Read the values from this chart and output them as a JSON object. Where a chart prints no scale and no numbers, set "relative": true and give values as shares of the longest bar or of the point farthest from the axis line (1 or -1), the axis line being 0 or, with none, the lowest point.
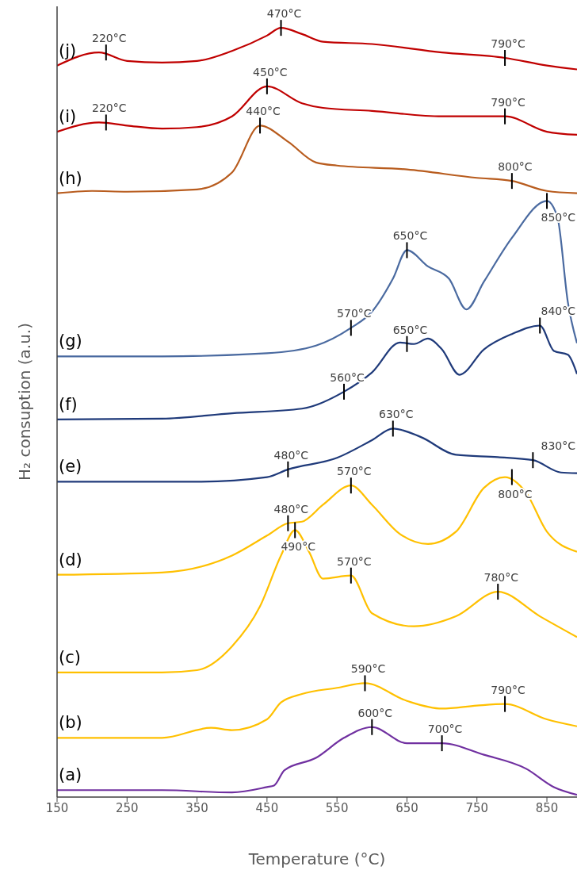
{
  "chart_data": {
    "type": "line",
    "relative": true,
    "xlabel": "Temperature (°C)",
    "ylabel": "H₂ consuption (a.u.)",
    "xlim": [
      150,
      893
    ],
    "xticks": [
      150,
      250,
      350,
      450,
      550,
      650,
      750,
      850
    ],
    "grid": false,
    "legend": false,
    "marker": "none",
    "line_style": "solid",
    "series": [
      {
        "name": "(j)",
        "color": "#c00000",
        "x": [
          150,
          210,
          250,
          300,
          350,
          400,
          450,
          470,
          500,
          530,
          600,
          700,
          790,
          850,
          893
        ],
        "values": [
          0.951,
          0.968,
          0.957,
          0.955,
          0.957,
          0.97,
          0.99,
          1.0,
          0.992,
          0.982,
          0.979,
          0.968,
          0.961,
          0.951,
          0.946
        ]
      },
      {
        "name": "(i)",
        "color": "#c00000",
        "x": [
          150,
          210,
          250,
          300,
          350,
          400,
          450,
          500,
          530,
          600,
          700,
          790,
          850,
          893
        ],
        "values": [
          0.865,
          0.877,
          0.873,
          0.869,
          0.871,
          0.885,
          0.924,
          0.902,
          0.896,
          0.892,
          0.885,
          0.885,
          0.865,
          0.861
        ]
      },
      {
        "name": "(h)",
        "color": "#b85c1e",
        "x": [
          150,
          200,
          250,
          350,
          400,
          440,
          480,
          520,
          550,
          650,
          750,
          800,
          850,
          893
        ],
        "values": [
          0.785,
          0.788,
          0.787,
          0.79,
          0.812,
          0.873,
          0.852,
          0.825,
          0.821,
          0.816,
          0.805,
          0.801,
          0.788,
          0.785
        ]
      },
      {
        "name": "(g)",
        "color": "#4a6aa0",
        "x": [
          150,
          300,
          450,
          520,
          570,
          600,
          630,
          650,
          680,
          710,
          735,
          760,
          800,
          850,
          865,
          880,
          893
        ],
        "values": [
          0.573,
          0.573,
          0.577,
          0.587,
          0.61,
          0.631,
          0.674,
          0.711,
          0.69,
          0.674,
          0.634,
          0.67,
          0.727,
          0.775,
          0.754,
          0.643,
          0.59
        ]
      },
      {
        "name": "(f)",
        "color": "#1f3a7a",
        "x": [
          150,
          300,
          400,
          500,
          560,
          600,
          640,
          660,
          680,
          700,
          725,
          760,
          800,
          840,
          860,
          880,
          893
        ],
        "values": [
          0.491,
          0.492,
          0.499,
          0.505,
          0.527,
          0.552,
          0.591,
          0.589,
          0.596,
          0.582,
          0.549,
          0.582,
          0.602,
          0.613,
          0.58,
          0.575,
          0.55
        ]
      },
      {
        "name": "(e)",
        "color": "#1f3a7a",
        "x": [
          150,
          350,
          450,
          480,
          550,
          600,
          630,
          670,
          720,
          780,
          830,
          870,
          893
        ],
        "values": [
          0.41,
          0.41,
          0.416,
          0.426,
          0.441,
          0.464,
          0.479,
          0.468,
          0.445,
          0.442,
          0.438,
          0.422,
          0.421
        ]
      },
      {
        "name": "(d)",
        "color": "#ffc000",
        "x": [
          150,
          300,
          400,
          450,
          480,
          500,
          530,
          570,
          600,
          640,
          680,
          720,
          760,
          790,
          820,
          850,
          893
        ],
        "values": [
          0.289,
          0.292,
          0.314,
          0.34,
          0.356,
          0.358,
          0.38,
          0.405,
          0.38,
          0.342,
          0.329,
          0.345,
          0.402,
          0.416,
          0.396,
          0.345,
          0.319
        ]
      },
      {
        "name": "(c)",
        "color": "#ffc000",
        "x": [
          150,
          300,
          350,
          400,
          440,
          470,
          490,
          510,
          530,
          570,
          600,
          660,
          720,
          780,
          840,
          893
        ],
        "values": [
          0.162,
          0.162,
          0.165,
          0.196,
          0.248,
          0.314,
          0.347,
          0.319,
          0.284,
          0.288,
          0.239,
          0.222,
          0.235,
          0.267,
          0.235,
          0.208
        ]
      },
      {
        "name": "(b)",
        "color": "#ffc000",
        "x": [
          150,
          300,
          370,
          400,
          450,
          470,
          500,
          550,
          590,
          650,
          700,
          750,
          790,
          850,
          893
        ],
        "values": [
          0.077,
          0.077,
          0.09,
          0.087,
          0.101,
          0.123,
          0.134,
          0.142,
          0.148,
          0.125,
          0.115,
          0.119,
          0.121,
          0.101,
          0.092
        ]
      },
      {
        "name": "(a)",
        "color": "#7030a0",
        "x": [
          150,
          300,
          400,
          450,
          460,
          475,
          520,
          560,
          600,
          650,
          700,
          760,
          820,
          860,
          893
        ],
        "values": [
          0.009,
          0.009,
          0.006,
          0.013,
          0.015,
          0.035,
          0.051,
          0.077,
          0.091,
          0.07,
          0.07,
          0.055,
          0.037,
          0.013,
          0.003
        ]
      }
    ],
    "annotations": [
      {
        "text": "220°C",
        "x": 220,
        "y": 0.968
      },
      {
        "text": "470°C",
        "x": 470,
        "y": 1.0
      },
      {
        "text": "790°C",
        "x": 790,
        "y": 0.961
      },
      {
        "text": "220°C",
        "x": 220,
        "y": 0.877
      },
      {
        "text": "450°C",
        "x": 450,
        "y": 0.924
      },
      {
        "text": "790°C",
        "x": 790,
        "y": 0.885
      },
      {
        "text": "440°C",
        "x": 440,
        "y": 0.873
      },
      {
        "text": "800°C",
        "x": 800,
        "y": 0.801
      },
      {
        "text": "570°C",
        "x": 570,
        "y": 0.61
      },
      {
        "text": "650°C",
        "x": 650,
        "y": 0.711
      },
      {
        "text": "850°C",
        "x": 850,
        "y": 0.775
      },
      {
        "text": "560°C",
        "x": 560,
        "y": 0.527
      },
      {
        "text": "650°C",
        "x": 650,
        "y": 0.589
      },
      {
        "text": "840°C",
        "x": 840,
        "y": 0.613
      },
      {
        "text": "480°C",
        "x": 480,
        "y": 0.426
      },
      {
        "text": "630°C",
        "x": 630,
        "y": 0.479
      },
      {
        "text": "830°C",
        "x": 830,
        "y": 0.438
      },
      {
        "text": "480°C",
        "x": 480,
        "y": 0.356
      },
      {
        "text": "570°C",
        "x": 570,
        "y": 0.405
      },
      {
        "text": "800°C",
        "x": 800,
        "y": 0.416
      },
      {
        "text": "490°C",
        "x": 490,
        "y": 0.347
      },
      {
        "text": "570°C",
        "x": 570,
        "y": 0.288
      },
      {
        "text": "780°C",
        "x": 780,
        "y": 0.267
      },
      {
        "text": "590°C",
        "x": 590,
        "y": 0.148
      },
      {
        "text": "790°C",
        "x": 790,
        "y": 0.121
      },
      {
        "text": "600°C",
        "x": 600,
        "y": 0.091
      },
      {
        "text": "700°C",
        "x": 700,
        "y": 0.07
      }
    ]
  }
}
